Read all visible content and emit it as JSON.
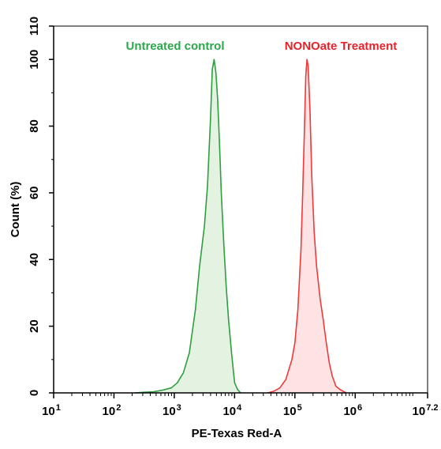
{
  "chart_data": {
    "type": "area",
    "title": "",
    "xlabel": "PE-Texas Red-A",
    "ylabel": "Count (%)",
    "x_scale": "log10",
    "xlim_exponent": [
      1,
      7.2
    ],
    "ylim": [
      0,
      110
    ],
    "x_ticks": [
      {
        "base": "10",
        "exp": "1"
      },
      {
        "base": "10",
        "exp": "2"
      },
      {
        "base": "10",
        "exp": "3"
      },
      {
        "base": "10",
        "exp": "4"
      },
      {
        "base": "10",
        "exp": "5"
      },
      {
        "base": "10",
        "exp": "6"
      },
      {
        "base": "10",
        "exp": "7.2"
      }
    ],
    "x_tick_values": [
      1,
      2,
      3,
      4,
      5,
      6,
      7.2
    ],
    "y_ticks": [
      0,
      20,
      40,
      60,
      80,
      100,
      110
    ],
    "grid": false,
    "series": [
      {
        "name": "Untreated control",
        "color": "#2e9e3e",
        "fill": "#e4f2e2",
        "label_color": "#2aa84a",
        "points": [
          [
            2.35,
            0
          ],
          [
            2.5,
            0.2
          ],
          [
            2.65,
            0.3
          ],
          [
            2.8,
            0.8
          ],
          [
            2.95,
            1.5
          ],
          [
            3.05,
            3
          ],
          [
            3.15,
            6
          ],
          [
            3.25,
            12
          ],
          [
            3.35,
            25
          ],
          [
            3.42,
            38
          ],
          [
            3.5,
            50
          ],
          [
            3.55,
            62
          ],
          [
            3.6,
            82
          ],
          [
            3.63,
            97
          ],
          [
            3.66,
            100
          ],
          [
            3.69,
            96
          ],
          [
            3.72,
            88
          ],
          [
            3.75,
            75
          ],
          [
            3.78,
            60
          ],
          [
            3.82,
            45
          ],
          [
            3.86,
            32
          ],
          [
            3.9,
            22
          ],
          [
            3.95,
            12
          ],
          [
            4.0,
            3
          ],
          [
            4.05,
            1
          ],
          [
            4.1,
            0
          ]
        ]
      },
      {
        "name": "NONOate Treatment",
        "color": "#ee3a3a",
        "fill": "#fde3e3",
        "label_color": "#e8222b",
        "points": [
          [
            4.55,
            0
          ],
          [
            4.65,
            0.5
          ],
          [
            4.75,
            1.5
          ],
          [
            4.85,
            4
          ],
          [
            4.95,
            10
          ],
          [
            5.0,
            15
          ],
          [
            5.05,
            25
          ],
          [
            5.1,
            43
          ],
          [
            5.13,
            60
          ],
          [
            5.16,
            80
          ],
          [
            5.18,
            95
          ],
          [
            5.2,
            100
          ],
          [
            5.22,
            98
          ],
          [
            5.25,
            85
          ],
          [
            5.28,
            65
          ],
          [
            5.32,
            48
          ],
          [
            5.36,
            38
          ],
          [
            5.42,
            28
          ],
          [
            5.47,
            22
          ],
          [
            5.52,
            15
          ],
          [
            5.57,
            9
          ],
          [
            5.62,
            5
          ],
          [
            5.68,
            2
          ],
          [
            5.75,
            1
          ],
          [
            5.85,
            0
          ]
        ]
      }
    ]
  }
}
